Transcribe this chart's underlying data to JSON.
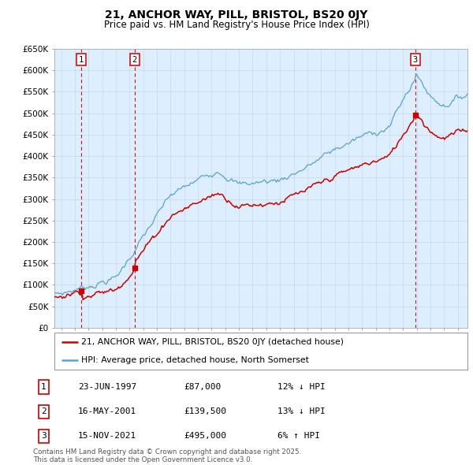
{
  "title": "21, ANCHOR WAY, PILL, BRISTOL, BS20 0JY",
  "subtitle": "Price paid vs. HM Land Registry's House Price Index (HPI)",
  "ylim": [
    0,
    650000
  ],
  "xlim_start": 1995.5,
  "xlim_end": 2025.7,
  "sale_dates_decimal": [
    1997.48,
    2001.37,
    2021.88
  ],
  "sale_prices": [
    87000,
    139500,
    495000
  ],
  "sale_labels": [
    "1",
    "2",
    "3"
  ],
  "legend_line1": "21, ANCHOR WAY, PILL, BRISTOL, BS20 0JY (detached house)",
  "legend_line2": "HPI: Average price, detached house, North Somerset",
  "table_rows": [
    [
      "1",
      "23-JUN-1997",
      "£87,000",
      "12% ↓ HPI"
    ],
    [
      "2",
      "16-MAY-2001",
      "£139,500",
      "13% ↓ HPI"
    ],
    [
      "3",
      "15-NOV-2021",
      "£495,000",
      "6% ↑ HPI"
    ]
  ],
  "footnote": "Contains HM Land Registry data © Crown copyright and database right 2025.\nThis data is licensed under the Open Government Licence v3.0.",
  "hpi_color": "#5ba3d0",
  "price_color": "#cc0000",
  "vline_color": "#cc0000",
  "grid_color": "#c8d8e8",
  "background_color": "#ffffff",
  "plot_bg_color": "#ddeeff"
}
